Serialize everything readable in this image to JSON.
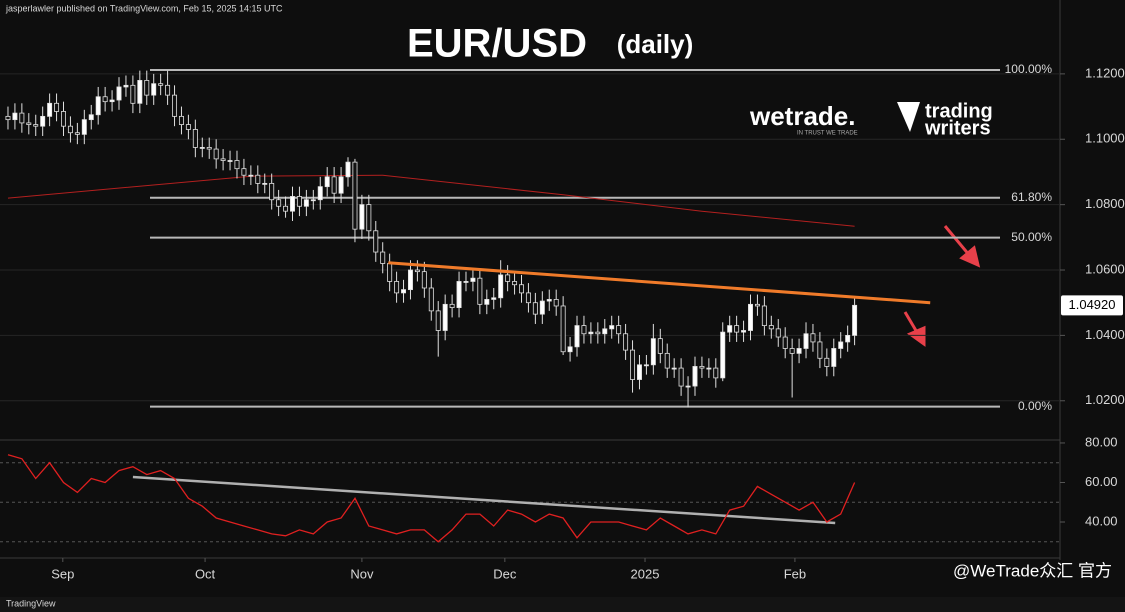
{
  "header": {
    "byline": "jasperlawler published on TradingView.com, Feb 15, 2025 14:15 UTC",
    "brand": "wetrade.",
    "brand_tagline": "IN TRUST WE TRADE",
    "partner_line1": "trading",
    "partner_line2": "writers",
    "footer": "TradingView",
    "watermark": "@WeTrade众汇 官方"
  },
  "chart_data": [
    {
      "type": "candlestick",
      "title": "EUR/USD",
      "subtitle": "(daily)",
      "up_color": "#ffffff",
      "down_color": "#111111",
      "xlim": [
        -1.15,
        151.6
      ],
      "ylim": [
        1.008,
        1.1426
      ],
      "yticks": [
        {
          "value": 1.12,
          "label": "1.12000"
        },
        {
          "value": 1.1,
          "label": "1.10000"
        },
        {
          "value": 1.08,
          "label": "1.08000"
        },
        {
          "value": 1.06,
          "label": "1.06000"
        },
        {
          "value": 1.04,
          "label": "1.04000"
        },
        {
          "value": 1.02,
          "label": "1.02000"
        }
      ],
      "grid": true,
      "last_price": {
        "value": 1.0492,
        "label": "1.04920"
      },
      "levels": [
        {
          "value": 1.1212,
          "label": "100.00%"
        },
        {
          "value": 1.0821,
          "label": "61.80%"
        },
        {
          "value": 1.0699,
          "label": "50.00%"
        },
        {
          "value": 1.0182,
          "label": "0.00%"
        }
      ],
      "ma": {
        "color": "#b3201f",
        "x": [
          0,
          35,
          54,
          80,
          100,
          122
        ],
        "values": [
          1.082,
          1.0887,
          1.089,
          1.083,
          1.078,
          1.0734
        ]
      },
      "trendline": {
        "color": "#f07b2a",
        "x": [
          54.8,
          132.9
        ],
        "values": [
          1.0622,
          1.05
        ]
      },
      "candles": [
        [
          1.107,
          1.11,
          1.103,
          1.106
        ],
        [
          1.106,
          1.111,
          1.103,
          1.108
        ],
        [
          1.108,
          1.111,
          1.102,
          1.105
        ],
        [
          1.105,
          1.108,
          1.1015,
          1.1045
        ],
        [
          1.1045,
          1.1075,
          1.101,
          1.104
        ],
        [
          1.104,
          1.11,
          1.101,
          1.107
        ],
        [
          1.107,
          1.114,
          1.104,
          1.111
        ],
        [
          1.111,
          1.114,
          1.1055,
          1.1085
        ],
        [
          1.1085,
          1.1115,
          1.101,
          1.104
        ],
        [
          1.104,
          1.107,
          1.099,
          1.102
        ],
        [
          1.102,
          1.105,
          1.0985,
          1.1015
        ],
        [
          1.1015,
          1.109,
          1.0985,
          1.106
        ],
        [
          1.106,
          1.1105,
          1.103,
          1.1075
        ],
        [
          1.1075,
          1.116,
          1.1045,
          1.113
        ],
        [
          1.113,
          1.116,
          1.1085,
          1.1115
        ],
        [
          1.1115,
          1.115,
          1.1085,
          1.112
        ],
        [
          1.112,
          1.119,
          1.109,
          1.116
        ],
        [
          1.116,
          1.1195,
          1.113,
          1.1165
        ],
        [
          1.1165,
          1.1195,
          1.108,
          1.111
        ],
        [
          1.111,
          1.121,
          1.108,
          1.118
        ],
        [
          1.118,
          1.121,
          1.1105,
          1.1135
        ],
        [
          1.1135,
          1.12,
          1.1105,
          1.117
        ],
        [
          1.117,
          1.12,
          1.1135,
          1.1165
        ],
        [
          1.1165,
          1.121,
          1.1105,
          1.1135
        ],
        [
          1.1135,
          1.1165,
          1.104,
          1.107
        ],
        [
          1.107,
          1.11,
          1.1015,
          1.1045
        ],
        [
          1.1045,
          1.1075,
          1.1,
          1.103
        ],
        [
          1.103,
          1.106,
          1.0945,
          1.0975
        ],
        [
          1.0975,
          1.1005,
          1.0945,
          1.0975
        ],
        [
          1.0975,
          1.1005,
          1.094,
          1.097
        ],
        [
          1.097,
          1.1,
          1.091,
          1.094
        ],
        [
          1.094,
          1.097,
          1.0905,
          1.0935
        ],
        [
          1.0935,
          1.0965,
          1.0905,
          1.0935
        ],
        [
          1.0935,
          1.0965,
          1.088,
          1.091
        ],
        [
          1.091,
          1.094,
          1.086,
          1.089
        ],
        [
          1.089,
          1.092,
          1.086,
          1.089
        ],
        [
          1.089,
          1.092,
          1.0835,
          1.0865
        ],
        [
          1.0865,
          1.0895,
          1.0835,
          1.0865
        ],
        [
          1.0865,
          1.0895,
          1.0785,
          1.0815
        ],
        [
          1.0815,
          1.0845,
          1.0765,
          1.0795
        ],
        [
          1.0795,
          1.0825,
          1.076,
          1.078
        ],
        [
          1.078,
          1.0855,
          1.075,
          1.0825
        ],
        [
          1.0825,
          1.0855,
          1.0765,
          1.0795
        ],
        [
          1.0795,
          1.0845,
          1.0765,
          1.0815
        ],
        [
          1.0815,
          1.0845,
          1.0785,
          1.0815
        ],
        [
          1.0815,
          1.0885,
          1.0785,
          1.0855
        ],
        [
          1.0855,
          1.0915,
          1.0825,
          1.0885
        ],
        [
          1.0885,
          1.0915,
          1.0805,
          1.0835
        ],
        [
          1.0835,
          1.0915,
          1.0805,
          1.0885
        ],
        [
          1.0885,
          1.0945,
          1.0855,
          1.093
        ],
        [
          1.093,
          1.094,
          1.0685,
          1.0725
        ],
        [
          1.0725,
          1.083,
          1.0695,
          1.08
        ],
        [
          1.08,
          1.083,
          1.069,
          1.072
        ],
        [
          1.072,
          1.075,
          1.0625,
          1.0655
        ],
        [
          1.0655,
          1.0685,
          1.059,
          1.062
        ],
        [
          1.062,
          1.065,
          1.0535,
          1.0565
        ],
        [
          1.0565,
          1.0595,
          1.05,
          1.053
        ],
        [
          1.053,
          1.057,
          1.05,
          1.054
        ],
        [
          1.054,
          1.063,
          1.051,
          1.06
        ],
        [
          1.06,
          1.063,
          1.0565,
          1.0595
        ],
        [
          1.0595,
          1.0625,
          1.0515,
          1.0545
        ],
        [
          1.0545,
          1.0575,
          1.0445,
          1.0475
        ],
        [
          1.0475,
          1.0505,
          1.0335,
          1.0415
        ],
        [
          1.0415,
          1.0525,
          1.0385,
          1.0495
        ],
        [
          1.0495,
          1.0525,
          1.0455,
          1.0485
        ],
        [
          1.0485,
          1.0595,
          1.0455,
          1.0565
        ],
        [
          1.0565,
          1.0595,
          1.0535,
          1.0565
        ],
        [
          1.0565,
          1.0605,
          1.0535,
          1.0575
        ],
        [
          1.0575,
          1.0605,
          1.0465,
          1.0495
        ],
        [
          1.0495,
          1.054,
          1.0465,
          1.051
        ],
        [
          1.051,
          1.0545,
          1.048,
          1.0515
        ],
        [
          1.0515,
          1.063,
          1.0485,
          1.0585
        ],
        [
          1.0585,
          1.0615,
          1.0535,
          1.0565
        ],
        [
          1.0565,
          1.0595,
          1.0525,
          1.0555
        ],
        [
          1.0555,
          1.0585,
          1.05,
          1.053
        ],
        [
          1.053,
          1.056,
          1.047,
          1.05
        ],
        [
          1.05,
          1.053,
          1.0435,
          1.0465
        ],
        [
          1.0465,
          1.0535,
          1.0435,
          1.0505
        ],
        [
          1.0505,
          1.054,
          1.0475,
          1.051
        ],
        [
          1.051,
          1.054,
          1.046,
          1.049
        ],
        [
          1.049,
          1.052,
          1.034,
          1.035
        ],
        [
          1.035,
          1.0395,
          1.032,
          1.0365
        ],
        [
          1.0365,
          1.046,
          1.0335,
          1.043
        ],
        [
          1.043,
          1.046,
          1.0375,
          1.0405
        ],
        [
          1.0405,
          1.044,
          1.0375,
          1.041
        ],
        [
          1.041,
          1.044,
          1.0375,
          1.0405
        ],
        [
          1.0405,
          1.045,
          1.0375,
          1.042
        ],
        [
          1.042,
          1.046,
          1.039,
          1.043
        ],
        [
          1.043,
          1.046,
          1.0375,
          1.0405
        ],
        [
          1.0405,
          1.0435,
          1.0325,
          1.0355
        ],
        [
          1.0355,
          1.0385,
          1.0225,
          1.0265
        ],
        [
          1.0265,
          1.034,
          1.0235,
          1.031
        ],
        [
          1.031,
          1.034,
          1.028,
          1.031
        ],
        [
          1.031,
          1.0435,
          1.028,
          1.039
        ],
        [
          1.039,
          1.042,
          1.0315,
          1.0345
        ],
        [
          1.0345,
          1.0375,
          1.027,
          1.03
        ],
        [
          1.03,
          1.033,
          1.027,
          1.03
        ],
        [
          1.03,
          1.033,
          1.0215,
          1.0245
        ],
        [
          1.0245,
          1.0275,
          1.018,
          1.0245
        ],
        [
          1.0245,
          1.0335,
          1.0215,
          1.0305
        ],
        [
          1.0305,
          1.0335,
          1.027,
          1.03
        ],
        [
          1.03,
          1.033,
          1.027,
          1.03
        ],
        [
          1.03,
          1.033,
          1.024,
          1.027
        ],
        [
          1.027,
          1.044,
          1.026,
          1.041
        ],
        [
          1.041,
          1.046,
          1.038,
          1.043
        ],
        [
          1.043,
          1.046,
          1.038,
          1.041
        ],
        [
          1.041,
          1.0445,
          1.038,
          1.0415
        ],
        [
          1.0415,
          1.0525,
          1.0385,
          1.0495
        ],
        [
          1.0495,
          1.0525,
          1.046,
          1.049
        ],
        [
          1.049,
          1.052,
          1.04,
          1.043
        ],
        [
          1.043,
          1.046,
          1.039,
          1.042
        ],
        [
          1.042,
          1.045,
          1.0365,
          1.0395
        ],
        [
          1.0395,
          1.0425,
          1.033,
          1.036
        ],
        [
          1.036,
          1.039,
          1.021,
          1.0345
        ],
        [
          1.0345,
          1.039,
          1.0315,
          1.036
        ],
        [
          1.036,
          1.044,
          1.033,
          1.0405
        ],
        [
          1.0405,
          1.0435,
          1.035,
          1.038
        ],
        [
          1.038,
          1.041,
          1.03,
          1.033
        ],
        [
          1.033,
          1.036,
          1.0275,
          1.0305
        ],
        [
          1.0305,
          1.039,
          1.0275,
          1.036
        ],
        [
          1.036,
          1.041,
          1.033,
          1.038
        ],
        [
          1.038,
          1.043,
          1.035,
          1.04
        ],
        [
          1.04,
          1.0515,
          1.037,
          1.0492
        ]
      ]
    },
    {
      "type": "line",
      "color": "#e02020",
      "xlim": [
        -1.15,
        151.6
      ],
      "ylim": [
        23.3,
        81.5
      ],
      "yticks": [
        {
          "value": 80,
          "label": "80.00"
        },
        {
          "value": 60,
          "label": "60.00"
        },
        {
          "value": 40,
          "label": "40.00"
        }
      ],
      "levels": [
        70,
        50,
        30
      ],
      "xticks": [
        {
          "value": 7.9,
          "label": "Sep"
        },
        {
          "value": 28.4,
          "label": "Oct"
        },
        {
          "value": 51,
          "label": "Nov"
        },
        {
          "value": 71.6,
          "label": "Dec"
        },
        {
          "value": 91.8,
          "label": "2025"
        },
        {
          "value": 113.4,
          "label": "Feb"
        }
      ],
      "trendline": {
        "color": "#b0b0b0",
        "x": [
          18,
          119.2
        ],
        "values": [
          62.8,
          39.5
        ]
      },
      "x": [
        0,
        2,
        4,
        6,
        8,
        10,
        12,
        14,
        16,
        18,
        20,
        22,
        24,
        26,
        28,
        30,
        32,
        34,
        36,
        38,
        40,
        42,
        44,
        46,
        48,
        50,
        52,
        54,
        56,
        58,
        60,
        62,
        64,
        66,
        68,
        70,
        72,
        74,
        76,
        78,
        80,
        82,
        84,
        86,
        88,
        90,
        92,
        94,
        96,
        98,
        100,
        102,
        104,
        106,
        108,
        110,
        112,
        114,
        116,
        118,
        120,
        122
      ],
      "values": [
        74,
        72,
        62,
        70,
        60,
        55,
        62,
        60,
        66,
        68,
        64,
        66,
        62,
        52,
        48,
        42,
        40,
        38,
        36,
        34,
        33,
        36,
        34,
        40,
        42,
        52,
        38,
        36,
        34,
        36,
        36,
        30,
        36,
        44,
        44,
        38,
        46,
        44,
        40,
        44,
        42,
        32,
        40,
        40,
        40,
        38,
        36,
        42,
        38,
        34,
        36,
        34,
        46,
        48,
        58,
        54,
        50,
        46,
        50,
        40,
        44,
        60
      ]
    }
  ]
}
